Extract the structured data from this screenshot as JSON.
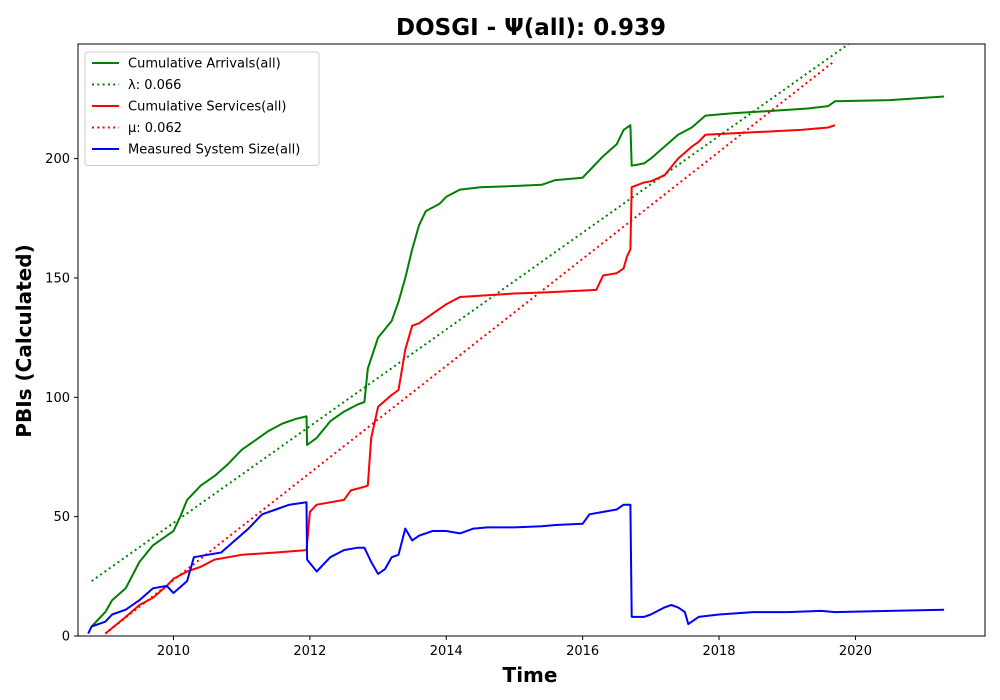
{
  "chart_data": {
    "type": "line",
    "title": "DOSGI -  Ψ(all): 0.939",
    "xlabel": "Time",
    "ylabel": "PBIs (Calculated)",
    "xlim": [
      2008.6,
      2021.9
    ],
    "ylim": [
      0,
      248
    ],
    "xticks": [
      2010,
      2012,
      2014,
      2016,
      2018,
      2020
    ],
    "yticks": [
      0,
      50,
      100,
      150,
      200
    ],
    "grid": false,
    "legend_position": "top-left",
    "series": [
      {
        "name": "Cumulative Arrivals(all)",
        "color": "#008000",
        "style": "solid",
        "points": [
          [
            2008.8,
            4
          ],
          [
            2009.0,
            10
          ],
          [
            2009.1,
            15
          ],
          [
            2009.3,
            20
          ],
          [
            2009.5,
            31
          ],
          [
            2009.7,
            38
          ],
          [
            2009.9,
            42
          ],
          [
            2010.0,
            44
          ],
          [
            2010.1,
            50
          ],
          [
            2010.2,
            57
          ],
          [
            2010.4,
            63
          ],
          [
            2010.6,
            67
          ],
          [
            2010.8,
            72
          ],
          [
            2011.0,
            78
          ],
          [
            2011.2,
            82
          ],
          [
            2011.4,
            86
          ],
          [
            2011.6,
            89
          ],
          [
            2011.8,
            91
          ],
          [
            2011.95,
            92
          ],
          [
            2011.96,
            80
          ],
          [
            2012.1,
            83
          ],
          [
            2012.3,
            90
          ],
          [
            2012.5,
            94
          ],
          [
            2012.7,
            97
          ],
          [
            2012.8,
            98
          ],
          [
            2012.85,
            112
          ],
          [
            2013.0,
            125
          ],
          [
            2013.2,
            132
          ],
          [
            2013.3,
            140
          ],
          [
            2013.4,
            150
          ],
          [
            2013.5,
            162
          ],
          [
            2013.6,
            172
          ],
          [
            2013.7,
            178
          ],
          [
            2013.9,
            181
          ],
          [
            2014.0,
            184
          ],
          [
            2014.2,
            187
          ],
          [
            2014.5,
            188
          ],
          [
            2015.0,
            188.5
          ],
          [
            2015.4,
            189
          ],
          [
            2015.6,
            191
          ],
          [
            2016.0,
            192
          ],
          [
            2016.1,
            195
          ],
          [
            2016.3,
            201
          ],
          [
            2016.5,
            206
          ],
          [
            2016.6,
            212
          ],
          [
            2016.7,
            214
          ],
          [
            2016.72,
            197
          ],
          [
            2016.9,
            198
          ],
          [
            2017.0,
            200
          ],
          [
            2017.2,
            205
          ],
          [
            2017.4,
            210
          ],
          [
            2017.6,
            213
          ],
          [
            2017.8,
            218
          ],
          [
            2018.2,
            219
          ],
          [
            2018.8,
            220
          ],
          [
            2019.3,
            221
          ],
          [
            2019.6,
            222
          ],
          [
            2019.7,
            224
          ],
          [
            2020.5,
            224.5
          ],
          [
            2021.3,
            226
          ]
        ]
      },
      {
        "name": "λ: 0.066",
        "color": "#008000",
        "style": "dotted",
        "points": [
          [
            2008.8,
            23
          ],
          [
            2019.9,
            248
          ]
        ]
      },
      {
        "name": "Cumulative Services(all)",
        "color": "#ff0000",
        "style": "solid",
        "points": [
          [
            2009.0,
            1
          ],
          [
            2009.3,
            8
          ],
          [
            2009.5,
            13
          ],
          [
            2009.7,
            16
          ],
          [
            2009.9,
            21
          ],
          [
            2010.0,
            24
          ],
          [
            2010.2,
            27
          ],
          [
            2010.4,
            29
          ],
          [
            2010.6,
            32
          ],
          [
            2011.0,
            34
          ],
          [
            2011.5,
            35
          ],
          [
            2011.95,
            36
          ],
          [
            2012.0,
            52
          ],
          [
            2012.1,
            55
          ],
          [
            2012.3,
            56
          ],
          [
            2012.5,
            57
          ],
          [
            2012.6,
            61
          ],
          [
            2012.8,
            62.5
          ],
          [
            2012.85,
            63
          ],
          [
            2012.9,
            83
          ],
          [
            2013.0,
            96
          ],
          [
            2013.2,
            101
          ],
          [
            2013.3,
            103
          ],
          [
            2013.4,
            120
          ],
          [
            2013.5,
            130
          ],
          [
            2013.6,
            131
          ],
          [
            2013.8,
            135
          ],
          [
            2014.0,
            139
          ],
          [
            2014.2,
            142
          ],
          [
            2015.0,
            143.5
          ],
          [
            2015.5,
            144
          ],
          [
            2016.2,
            145
          ],
          [
            2016.3,
            151
          ],
          [
            2016.5,
            152
          ],
          [
            2016.6,
            154
          ],
          [
            2016.65,
            159
          ],
          [
            2016.7,
            162
          ],
          [
            2016.72,
            188
          ],
          [
            2016.9,
            190
          ],
          [
            2017.0,
            190.5
          ],
          [
            2017.2,
            193
          ],
          [
            2017.4,
            200
          ],
          [
            2017.6,
            205
          ],
          [
            2017.7,
            207
          ],
          [
            2017.8,
            210
          ],
          [
            2018.5,
            211
          ],
          [
            2019.2,
            212
          ],
          [
            2019.6,
            213
          ],
          [
            2019.7,
            214
          ]
        ]
      },
      {
        "name": "μ: 0.062",
        "color": "#ff0000",
        "style": "dotted",
        "points": [
          [
            2009.0,
            1
          ],
          [
            2019.7,
            241
          ]
        ]
      },
      {
        "name": "Measured System Size(all)",
        "color": "#0000ff",
        "style": "solid",
        "points": [
          [
            2008.75,
            1
          ],
          [
            2008.8,
            4
          ],
          [
            2009.0,
            6
          ],
          [
            2009.1,
            9
          ],
          [
            2009.3,
            11
          ],
          [
            2009.5,
            15
          ],
          [
            2009.7,
            20
          ],
          [
            2009.9,
            21
          ],
          [
            2010.0,
            18
          ],
          [
            2010.2,
            23
          ],
          [
            2010.3,
            33
          ],
          [
            2010.5,
            34
          ],
          [
            2010.7,
            35
          ],
          [
            2010.9,
            40
          ],
          [
            2011.1,
            45
          ],
          [
            2011.3,
            51
          ],
          [
            2011.5,
            53
          ],
          [
            2011.7,
            55
          ],
          [
            2011.95,
            56
          ],
          [
            2011.96,
            32
          ],
          [
            2012.1,
            27
          ],
          [
            2012.3,
            33
          ],
          [
            2012.5,
            36
          ],
          [
            2012.7,
            37
          ],
          [
            2012.8,
            37
          ],
          [
            2012.9,
            31
          ],
          [
            2013.0,
            26
          ],
          [
            2013.1,
            28
          ],
          [
            2013.2,
            33
          ],
          [
            2013.3,
            34
          ],
          [
            2013.4,
            45
          ],
          [
            2013.5,
            40
          ],
          [
            2013.6,
            42
          ],
          [
            2013.8,
            44
          ],
          [
            2014.0,
            44
          ],
          [
            2014.2,
            43
          ],
          [
            2014.4,
            45
          ],
          [
            2014.6,
            45.5
          ],
          [
            2015.0,
            45.5
          ],
          [
            2015.4,
            46
          ],
          [
            2015.6,
            46.5
          ],
          [
            2016.0,
            47
          ],
          [
            2016.1,
            51
          ],
          [
            2016.3,
            52
          ],
          [
            2016.5,
            53
          ],
          [
            2016.6,
            55
          ],
          [
            2016.7,
            55
          ],
          [
            2016.72,
            8
          ],
          [
            2016.9,
            8
          ],
          [
            2017.0,
            9
          ],
          [
            2017.2,
            12
          ],
          [
            2017.3,
            13
          ],
          [
            2017.4,
            12
          ],
          [
            2017.5,
            10
          ],
          [
            2017.55,
            5
          ],
          [
            2017.7,
            8
          ],
          [
            2018.0,
            9
          ],
          [
            2018.5,
            10
          ],
          [
            2019.0,
            10
          ],
          [
            2019.5,
            10.5
          ],
          [
            2019.7,
            10
          ],
          [
            2020.5,
            10.5
          ],
          [
            2021.3,
            11
          ]
        ]
      }
    ]
  }
}
